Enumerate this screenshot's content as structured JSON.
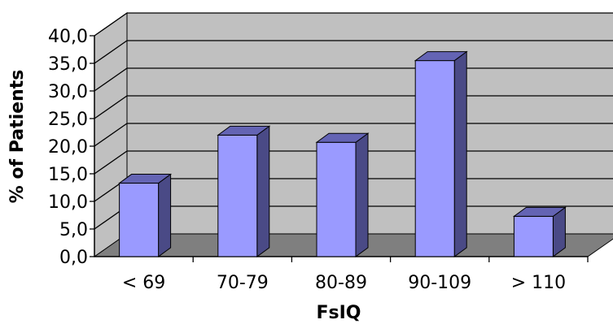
{
  "chart_data": {
    "type": "bar",
    "title": "",
    "xlabel": "FsIQ",
    "ylabel": "% of Patients",
    "categories": [
      "< 69",
      "70-79",
      "80-89",
      "90-109",
      "> 110"
    ],
    "values": [
      13.3,
      22.0,
      20.7,
      35.5,
      7.3
    ],
    "ylim": [
      0,
      40
    ],
    "yticks": [
      "0,0",
      "5,0",
      "10,0",
      "15,0",
      "20,0",
      "25,0",
      "30,0",
      "35,0",
      "40,0"
    ],
    "grid": true,
    "legend": "none",
    "three_d": true,
    "colors": {
      "bar_front": "#9a9aff",
      "bar_side": "#4a4a86",
      "bar_top": "#6464b4",
      "wall": "#c0c0c0",
      "floor": "#7f7f7f",
      "gridline": "#000000"
    }
  }
}
